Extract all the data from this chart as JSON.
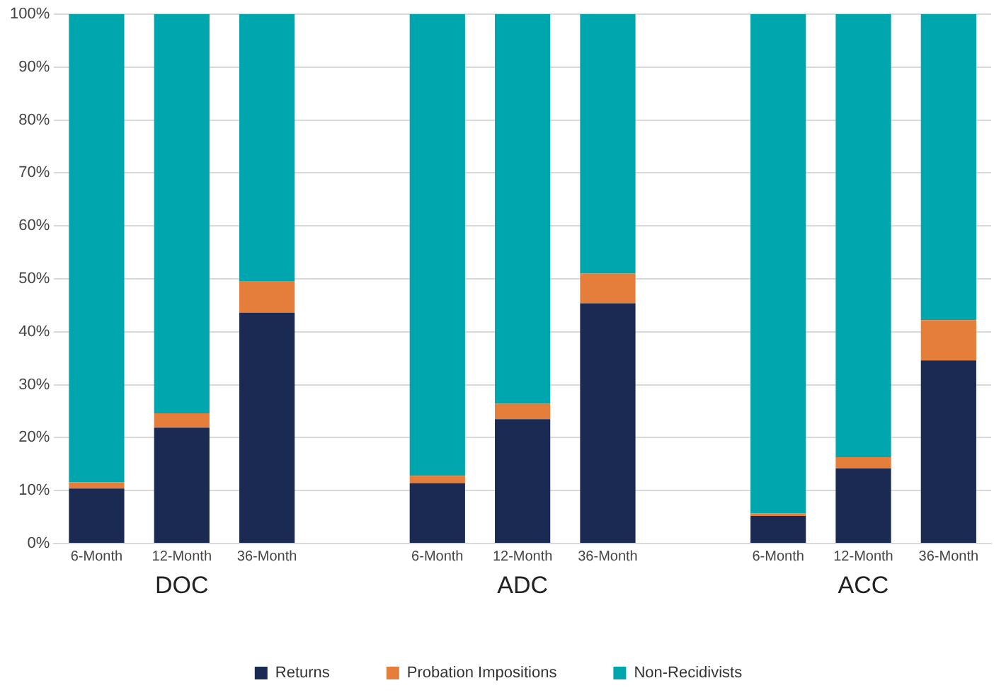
{
  "chart_data": {
    "type": "bar",
    "stacked": true,
    "categories": [
      "6-Month",
      "12-Month",
      "36-Month",
      null,
      "6-Month",
      "12-Month",
      "36-Month",
      null,
      "6-Month",
      "12-Month",
      "36-Month"
    ],
    "series": [
      {
        "name": "Returns",
        "color": "#1b2a52",
        "values": [
          10.4,
          21.9,
          43.6,
          null,
          11.4,
          23.5,
          45.4,
          null,
          5.2,
          14.2,
          34.6
        ]
      },
      {
        "name": "Probation Impositions",
        "color": "#e57e3a",
        "values": [
          1.2,
          2.7,
          6.0,
          null,
          1.4,
          2.9,
          5.6,
          null,
          0.5,
          2.1,
          7.6
        ]
      },
      {
        "name": "Non-Recidivists",
        "color": "#00a6ad",
        "values": [
          88.4,
          75.4,
          50.4,
          null,
          87.2,
          73.6,
          49.0,
          null,
          94.3,
          83.7,
          57.8
        ]
      }
    ],
    "annotations": [
      "DOC",
      "ADC",
      "ACC"
    ],
    "ylim": [
      0,
      100
    ],
    "yticks": [
      {
        "value": 0,
        "label": "0%"
      },
      {
        "value": 10,
        "label": "10%"
      },
      {
        "value": 20,
        "label": "20%"
      },
      {
        "value": 30,
        "label": "30%"
      },
      {
        "value": 40,
        "label": "40%"
      },
      {
        "value": 50,
        "label": "50%"
      },
      {
        "value": 60,
        "label": "60%"
      },
      {
        "value": 70,
        "label": "70%"
      },
      {
        "value": 80,
        "label": "80%"
      },
      {
        "value": 90,
        "label": "90%"
      },
      {
        "value": 100,
        "label": "100%"
      }
    ],
    "grid": "y",
    "legend": "bottom"
  }
}
